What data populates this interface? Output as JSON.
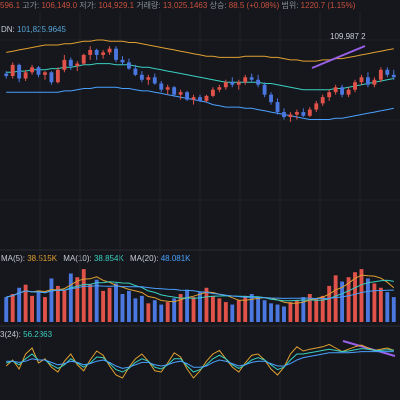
{
  "header": {
    "open_value": "596.1",
    "high_label": "고가:",
    "high_value": "106,149.0",
    "low_label": "저가:",
    "low_value": "104,929.1",
    "volume_label": "거래량:",
    "volume_value": "13,025.1463",
    "change_label": "상승:",
    "change_value": "88.5 (+0.08%)",
    "range_label": "범위:",
    "range_value": "1220.7 (1.15%)"
  },
  "bollinger": {
    "dn_label": "DN:",
    "dn_value": "101,825.9645"
  },
  "price_annotation": "109,987.2",
  "volume_panel": {
    "ma5_label": "MA(5):",
    "ma5_value": "38.515K",
    "ma10_label": "MA(10):",
    "ma10_value": "38.854K",
    "ma20_label": "MA(20):",
    "ma20_value": "48.081K"
  },
  "oscillator": {
    "label": "3(24):",
    "value": "56.2363"
  },
  "colors": {
    "background": "#15171c",
    "up": "#e0524a",
    "down": "#4a78e0",
    "upper_band": "#e0a030",
    "middle_band": "#3ad0c0",
    "lower_band": "#4aa0ff",
    "trendline": "#9a60e8"
  },
  "chart_data": [
    {
      "type": "candlestick",
      "title": "",
      "series": [
        {
          "name": "candles",
          "values": [
            [
              77,
              79,
              73,
              75
            ],
            [
              75,
              86,
              73,
              84
            ],
            [
              84,
              85,
              70,
              73
            ],
            [
              73,
              80,
              71,
              78
            ],
            [
              78,
              84,
              76,
              82
            ],
            [
              82,
              83,
              74,
              76
            ],
            [
              76,
              79,
              72,
              78
            ],
            [
              78,
              79,
              68,
              70
            ],
            [
              70,
              82,
              69,
              80
            ],
            [
              80,
              92,
              78,
              88
            ],
            [
              88,
              90,
              80,
              83
            ],
            [
              83,
              87,
              79,
              85
            ],
            [
              85,
              93,
              84,
              92
            ],
            [
              92,
              99,
              88,
              96
            ],
            [
              96,
              97,
              88,
              92
            ],
            [
              92,
              96,
              89,
              94
            ],
            [
              94,
              99,
              92,
              97
            ],
            [
              97,
              99,
              86,
              88
            ],
            [
              88,
              91,
              84,
              86
            ],
            [
              86,
              89,
              80,
              81
            ],
            [
              81,
              84,
              75,
              76
            ],
            [
              76,
              79,
              70,
              72
            ],
            [
              72,
              76,
              68,
              74
            ],
            [
              74,
              77,
              68,
              69
            ],
            [
              69,
              71,
              62,
              64
            ],
            [
              64,
              68,
              60,
              66
            ],
            [
              66,
              67,
              58,
              60
            ],
            [
              60,
              64,
              56,
              62
            ],
            [
              62,
              63,
              55,
              56
            ],
            [
              56,
              60,
              52,
              58
            ],
            [
              58,
              60,
              54,
              55
            ],
            [
              55,
              60,
              54,
              59
            ],
            [
              59,
              66,
              58,
              64
            ],
            [
              64,
              68,
              62,
              66
            ],
            [
              66,
              72,
              64,
              70
            ],
            [
              70,
              74,
              66,
              68
            ],
            [
              68,
              72,
              64,
              70
            ],
            [
              70,
              76,
              68,
              74
            ],
            [
              74,
              77,
              70,
              72
            ],
            [
              72,
              76,
              66,
              68
            ],
            [
              68,
              70,
              58,
              60
            ],
            [
              60,
              62,
              52,
              54
            ],
            [
              54,
              57,
              44,
              46
            ],
            [
              46,
              49,
              40,
              42
            ],
            [
              42,
              46,
              38,
              44
            ],
            [
              44,
              48,
              40,
              46
            ],
            [
              46,
              49,
              42,
              43
            ],
            [
              43,
              50,
              42,
              48
            ],
            [
              48,
              55,
              46,
              53
            ],
            [
              53,
              60,
              51,
              58
            ],
            [
              58,
              64,
              55,
              62
            ],
            [
              62,
              68,
              60,
              66
            ],
            [
              66,
              68,
              58,
              60
            ],
            [
              60,
              66,
              58,
              64
            ],
            [
              64,
              72,
              62,
              70
            ],
            [
              70,
              76,
              68,
              74
            ],
            [
              74,
              78,
              66,
              68
            ],
            [
              68,
              74,
              66,
              72
            ],
            [
              72,
              82,
              70,
              80
            ],
            [
              80,
              82,
              74,
              76
            ],
            [
              76,
              80,
              72,
              74
            ]
          ]
        }
      ],
      "bands": {
        "upper": [
          94,
          95,
          96,
          97,
          98,
          99,
          100,
          100,
          100,
          101,
          101,
          102,
          103,
          103,
          104,
          104,
          103,
          103,
          103,
          102,
          102,
          101,
          100,
          99,
          98,
          97,
          96,
          95,
          94,
          93,
          92,
          91,
          91,
          90,
          90,
          90,
          90,
          91,
          91,
          91,
          91,
          90,
          90,
          89,
          88,
          88,
          87,
          87,
          87,
          88,
          88,
          89,
          89,
          90,
          91,
          92,
          93,
          94,
          95,
          96,
          97
        ],
        "middle": [
          78,
          78,
          79,
          79,
          80,
          80,
          80,
          81,
          81,
          82,
          82,
          83,
          84,
          84,
          85,
          85,
          85,
          84,
          84,
          84,
          83,
          82,
          82,
          81,
          80,
          79,
          78,
          77,
          76,
          75,
          74,
          73,
          72,
          71,
          70,
          70,
          70,
          70,
          70,
          70,
          69,
          69,
          68,
          67,
          66,
          65,
          64,
          64,
          64,
          64,
          64,
          65,
          65,
          66,
          67,
          68,
          69,
          70,
          71,
          72,
          73
        ],
        "lower": [
          62,
          62,
          62,
          62,
          62,
          62,
          62,
          62,
          62,
          63,
          63,
          64,
          65,
          65,
          66,
          66,
          66,
          66,
          65,
          65,
          64,
          63,
          63,
          62,
          61,
          60,
          59,
          58,
          57,
          56,
          55,
          54,
          52,
          51,
          50,
          50,
          50,
          49,
          49,
          48,
          47,
          46,
          45,
          44,
          43,
          42,
          41,
          40,
          40,
          40,
          40,
          41,
          41,
          42,
          43,
          44,
          45,
          46,
          47,
          48,
          49
        ]
      }
    },
    {
      "type": "bar",
      "title": "",
      "series": [
        {
          "name": "volume",
          "values": [
            40,
            45,
            55,
            60,
            42,
            48,
            40,
            70,
            58,
            52,
            78,
            72,
            85,
            60,
            68,
            50,
            55,
            62,
            45,
            50,
            38,
            42,
            30,
            35,
            28,
            32,
            38,
            45,
            52,
            40,
            48,
            55,
            42,
            38,
            32,
            28,
            35,
            42,
            45,
            40,
            35,
            30,
            28,
            25,
            32,
            35,
            40,
            45,
            38,
            42,
            58,
            75,
            65,
            72,
            80,
            85,
            70,
            62,
            55,
            48,
            40
          ]
        }
      ]
    },
    {
      "type": "line",
      "title": "",
      "series": [
        {
          "name": "",
          "values": [
            50,
            60,
            45,
            70,
            80,
            55,
            62,
            48,
            40,
            58,
            70,
            52,
            42,
            60,
            75,
            68,
            50,
            35,
            30,
            48,
            62,
            70,
            58,
            42,
            40,
            55,
            72,
            65,
            45,
            30,
            42,
            58,
            70,
            76,
            62,
            48,
            40,
            55,
            68,
            70,
            60,
            45,
            35,
            48,
            70,
            82,
            75,
            78,
            80,
            82,
            86,
            80,
            74,
            78,
            82,
            85,
            80,
            76,
            78,
            80,
            76
          ]
        },
        {
          "name": "",
          "values": [
            55,
            58,
            52,
            62,
            70,
            60,
            60,
            52,
            46,
            52,
            62,
            55,
            48,
            55,
            65,
            64,
            54,
            44,
            40,
            46,
            56,
            62,
            58,
            48,
            45,
            52,
            62,
            62,
            50,
            40,
            44,
            52,
            62,
            68,
            62,
            52,
            46,
            52,
            60,
            64,
            60,
            52,
            44,
            48,
            60,
            70,
            70,
            72,
            74,
            76,
            78,
            76,
            74,
            75,
            77,
            79,
            78,
            76,
            76,
            77,
            76
          ]
        },
        {
          "name": "",
          "values": [
            58,
            58,
            56,
            58,
            62,
            60,
            60,
            56,
            52,
            54,
            58,
            56,
            52,
            54,
            58,
            60,
            56,
            50,
            46,
            48,
            52,
            56,
            56,
            52,
            50,
            52,
            56,
            58,
            54,
            48,
            48,
            50,
            56,
            60,
            58,
            54,
            50,
            52,
            56,
            58,
            58,
            54,
            50,
            50,
            54,
            60,
            64,
            66,
            68,
            70,
            72,
            72,
            72,
            72,
            73,
            74,
            74,
            74,
            74,
            74,
            74
          ]
        }
      ]
    }
  ]
}
